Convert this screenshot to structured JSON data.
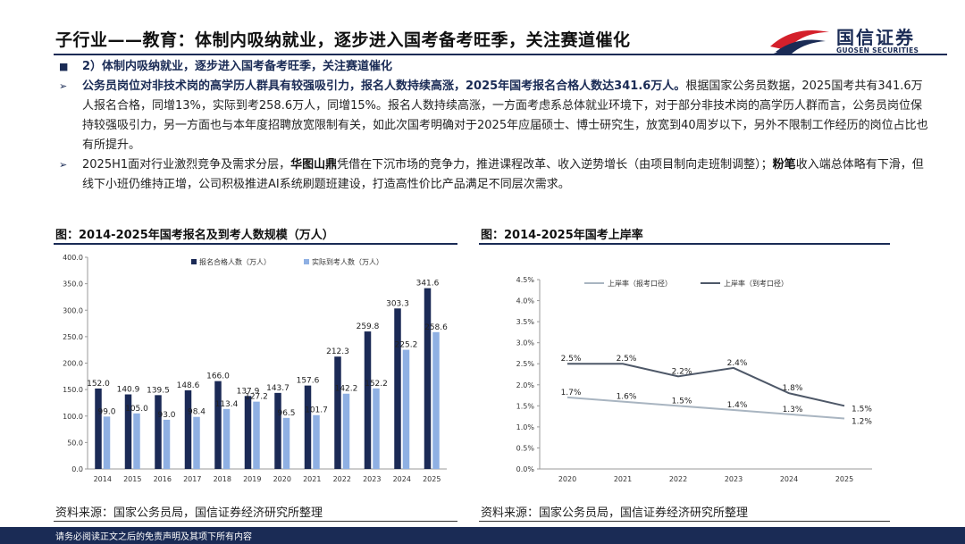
{
  "header": {
    "title": "子行业——教育：体制内吸纳就业，逐步进入国考备考旺季，关注赛道催化",
    "logo_cn": "国信证券",
    "logo_en": "GUOSEN SECURITIES"
  },
  "section": {
    "heading": "2）体制内吸纳就业，逐步进入国考备考旺季，关注赛道催化",
    "b1_lead": "公务员岗位对非技术岗的高学历人群具有较强吸引力，报名人数持续高涨，2025年国考报名合格人数达341.6万人。",
    "b1_rest": "根据国家公务员数据，2025国考共有341.6万人报名合格，同增13%，实际到考258.6万人，同增15%。报名人数持续高涨，一方面考虑系总体就业环境下，对于部分非技术岗的高学历人群而言，公务员岗位保持较强吸引力，另一方面也与本年度招聘放宽限制有关，如此次国考明确对于2025年应届硕士、博士研究生，放宽到40周岁以下，另外不限制工作经历的岗位占比也有所提升。",
    "b2_a": "2025H1面对行业激烈竞争及需求分层，",
    "b2_k1": "华图山鼎",
    "b2_b": "凭借在下沉市场的竞争力，推进课程改革、收入逆势增长（由项目制向走班制调整）；",
    "b2_k2": "粉笔",
    "b2_c": "收入端总体略有下滑，但线下小班仍维持正增，公司积极推进AI系统刷题班建设，打造高性价比产品满足不同层次需求。"
  },
  "left_chart": {
    "title": "图：2014-2025年国考报名及到考人数规模（万人）",
    "source": "资料来源：国家公务员局，国信证券经济研究所整理"
  },
  "right_chart": {
    "title": "图：2014-2025年国考上岸率",
    "source": "资料来源：国家公务员局，国信证券经济研究所整理"
  },
  "footer": {
    "text": "请务必阅读正文之后的免责声明及其项下所有内容"
  },
  "colors": {
    "navy": "#1a2b55",
    "bar_dark": "#1b2a56",
    "bar_light": "#8fb0e3",
    "line_dark": "#4e5868",
    "line_light": "#a9b5c1",
    "logo_red": "#d4202b"
  },
  "chart_data": [
    {
      "type": "bar",
      "categories": [
        "2014",
        "2015",
        "2016",
        "2017",
        "2018",
        "2019",
        "2020",
        "2021",
        "2022",
        "2023",
        "2024",
        "2025"
      ],
      "series": [
        {
          "name": "报名合格人数（万人）",
          "values": [
            152.0,
            140.9,
            139.5,
            148.6,
            166.0,
            137.9,
            143.7,
            157.6,
            212.3,
            259.8,
            303.3,
            341.6
          ]
        },
        {
          "name": "实际到考人数（万人）",
          "values": [
            99.0,
            105.0,
            93.0,
            98.4,
            113.4,
            127.2,
            96.5,
            101.7,
            142.2,
            152.2,
            225.2,
            258.6
          ]
        }
      ],
      "yticks": [
        "0.0",
        "50.0",
        "100.0",
        "150.0",
        "200.0",
        "250.0",
        "300.0",
        "350.0",
        "400.0"
      ],
      "ylim": [
        0,
        400
      ],
      "legend": "top-right"
    },
    {
      "type": "line",
      "x": [
        "2020",
        "2021",
        "2022",
        "2023",
        "2024",
        "2025"
      ],
      "series": [
        {
          "name": "上岸率（报考口径）",
          "values": [
            1.7,
            1.6,
            1.5,
            1.4,
            1.3,
            1.2
          ],
          "labels": [
            "1.7%",
            "1.6%",
            "1.5%",
            "1.4%",
            "1.3%",
            "1.2%"
          ]
        },
        {
          "name": "上岸率（到考口径）",
          "values": [
            2.5,
            2.5,
            2.2,
            2.4,
            1.8,
            1.5
          ],
          "labels": [
            "2.5%",
            "2.5%",
            "2.2%",
            "2.4%",
            "1.8%",
            "1.5%"
          ]
        }
      ],
      "yticks": [
        "0.0%",
        "0.5%",
        "1.0%",
        "1.5%",
        "2.0%",
        "2.5%",
        "3.0%",
        "3.5%",
        "4.0%",
        "4.5%"
      ],
      "ylim": [
        0,
        4.5
      ],
      "legend": "top-center"
    }
  ]
}
